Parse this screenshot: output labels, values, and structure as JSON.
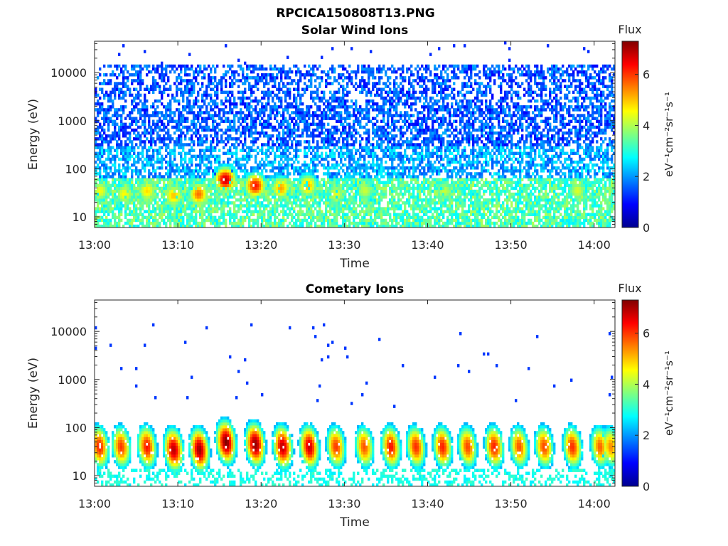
{
  "figure_title": "RPCICA150808T13.PNG",
  "colorbar": {
    "label": "Flux",
    "units_text": "eV⁻¹cm⁻²sr⁻¹s⁻¹",
    "ticks": [
      "0",
      "2",
      "4",
      "6"
    ],
    "range": [
      0,
      7.3
    ],
    "colormap": "jet"
  },
  "chart_data": [
    {
      "type": "heatmap",
      "title": "Solar Wind Ions",
      "xlabel": "Time",
      "ylabel": "Energy (eV)",
      "x_ticks": [
        "13:00",
        "13:10",
        "13:20",
        "13:30",
        "13:40",
        "13:50",
        "14:00"
      ],
      "x_range_minutes_after_1300": [
        0,
        62.5
      ],
      "y_scale": "log",
      "y_ticks": [
        "10",
        "100",
        "1000",
        "10000"
      ],
      "ylim": [
        6,
        45000
      ],
      "background_flux": {
        "low_energy_band_eV": [
          6,
          60
        ],
        "low_energy_level": 3.3,
        "high_energy_level": 1.4
      },
      "flux_enhancements": [
        {
          "t_min": 0.7,
          "energy_eV": 35,
          "peak_flux": 4.5
        },
        {
          "t_min": 3.6,
          "energy_eV": 30,
          "peak_flux": 4.6
        },
        {
          "t_min": 6.3,
          "energy_eV": 35,
          "peak_flux": 4.8
        },
        {
          "t_min": 9.5,
          "energy_eV": 28,
          "peak_flux": 5.0
        },
        {
          "t_min": 12.5,
          "energy_eV": 30,
          "peak_flux": 5.6
        },
        {
          "t_min": 15.7,
          "energy_eV": 60,
          "peak_flux": 6.8
        },
        {
          "t_min": 19.3,
          "energy_eV": 45,
          "peak_flux": 6.3
        },
        {
          "t_min": 22.4,
          "energy_eV": 40,
          "peak_flux": 5.2
        },
        {
          "t_min": 25.6,
          "energy_eV": 45,
          "peak_flux": 5.1
        },
        {
          "t_min": 29.0,
          "energy_eV": 30,
          "peak_flux": 4.4
        },
        {
          "t_min": 32.5,
          "energy_eV": 35,
          "peak_flux": 4.2
        },
        {
          "t_min": 42.0,
          "energy_eV": 35,
          "peak_flux": 4.2
        },
        {
          "t_min": 58.0,
          "energy_eV": 35,
          "peak_flux": 4.3
        }
      ]
    },
    {
      "type": "heatmap",
      "title": "Cometary Ions",
      "xlabel": "Time",
      "ylabel": "Energy (eV)",
      "x_ticks": [
        "13:00",
        "13:10",
        "13:20",
        "13:30",
        "13:40",
        "13:50",
        "14:00"
      ],
      "x_range_minutes_after_1300": [
        0,
        62.5
      ],
      "y_scale": "log",
      "y_ticks": [
        "10",
        "100",
        "1000",
        "10000"
      ],
      "ylim": [
        6,
        45000
      ],
      "background_flux": {
        "low_energy_band_eV": [
          6,
          14
        ],
        "low_energy_level": 2.9,
        "high_energy_level": 0
      },
      "flux_enhancements": [
        {
          "t_min": 0.6,
          "energy_eV": 40,
          "peak_flux": 6.2
        },
        {
          "t_min": 3.2,
          "energy_eV": 40,
          "peak_flux": 6.0
        },
        {
          "t_min": 6.3,
          "energy_eV": 40,
          "peak_flux": 6.3
        },
        {
          "t_min": 9.5,
          "energy_eV": 35,
          "peak_flux": 6.9
        },
        {
          "t_min": 12.6,
          "energy_eV": 35,
          "peak_flux": 7.1
        },
        {
          "t_min": 15.8,
          "energy_eV": 50,
          "peak_flux": 7.3
        },
        {
          "t_min": 19.3,
          "energy_eV": 45,
          "peak_flux": 7.2
        },
        {
          "t_min": 22.6,
          "energy_eV": 40,
          "peak_flux": 6.9
        },
        {
          "t_min": 25.8,
          "energy_eV": 40,
          "peak_flux": 6.8
        },
        {
          "t_min": 29.0,
          "energy_eV": 40,
          "peak_flux": 6.0
        },
        {
          "t_min": 32.4,
          "energy_eV": 40,
          "peak_flux": 5.8
        },
        {
          "t_min": 35.6,
          "energy_eV": 40,
          "peak_flux": 6.3
        },
        {
          "t_min": 38.6,
          "energy_eV": 40,
          "peak_flux": 6.1
        },
        {
          "t_min": 41.8,
          "energy_eV": 40,
          "peak_flux": 6.2
        },
        {
          "t_min": 44.8,
          "energy_eV": 40,
          "peak_flux": 5.9
        },
        {
          "t_min": 48.0,
          "energy_eV": 40,
          "peak_flux": 6.2
        },
        {
          "t_min": 51.0,
          "energy_eV": 40,
          "peak_flux": 5.8
        },
        {
          "t_min": 54.0,
          "energy_eV": 40,
          "peak_flux": 5.9
        },
        {
          "t_min": 57.4,
          "energy_eV": 40,
          "peak_flux": 6.1
        },
        {
          "t_min": 60.7,
          "energy_eV": 40,
          "peak_flux": 5.7
        },
        {
          "t_min": 62.0,
          "energy_eV": 40,
          "peak_flux": 5.4
        }
      ]
    }
  ]
}
